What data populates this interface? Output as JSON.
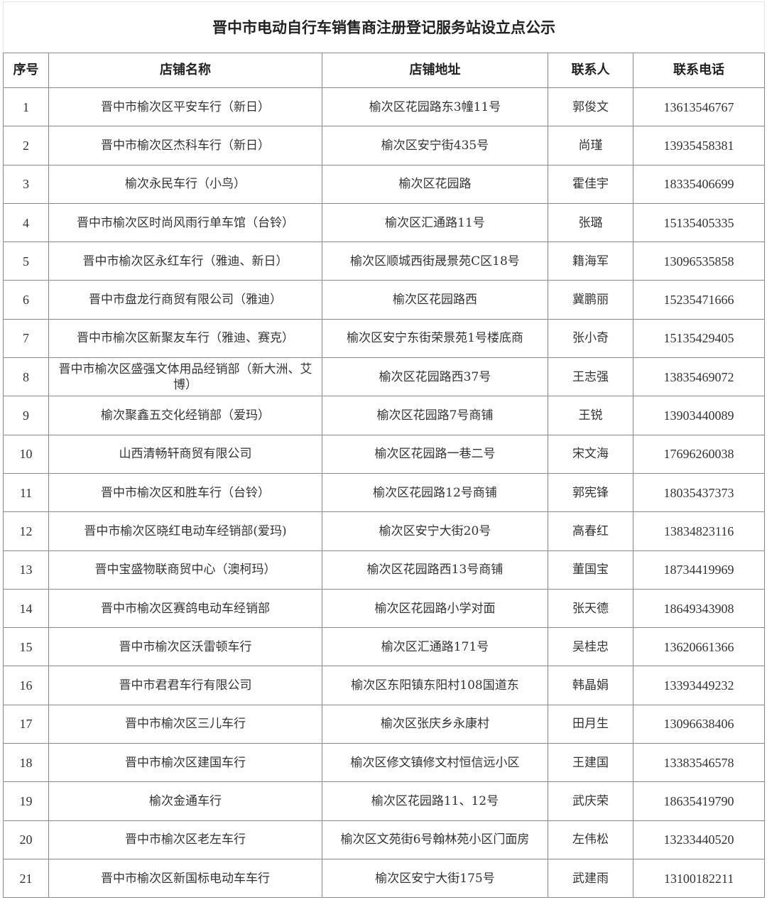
{
  "title": "晋中市电动自行车销售商注册登记服务站设立点公示",
  "headers": [
    "序号",
    "店铺名称",
    "店铺地址",
    "联系人",
    "联系电话"
  ],
  "rows": [
    {
      "no": "1",
      "name": "晋中市榆次区平安车行（新日）",
      "address": "榆次区花园路东3幢11号",
      "contact": "郭俊文",
      "phone": "13613546767"
    },
    {
      "no": "2",
      "name": "晋中市榆次区杰科车行（新日）",
      "address": "榆次区安宁街435号",
      "contact": "尚瑾",
      "phone": "13935458381"
    },
    {
      "no": "3",
      "name": "榆次永民车行（小鸟）",
      "address": "榆次区花园路",
      "contact": "霍佳宇",
      "phone": "18335406699"
    },
    {
      "no": "4",
      "name": "晋中市榆次区时尚风雨行单车馆（台铃）",
      "address": "榆次区汇通路11号",
      "contact": "张璐",
      "phone": "15135405335"
    },
    {
      "no": "5",
      "name": "晋中市榆次区永红车行（雅迪、新日）",
      "address": "榆次区顺城西街晟景苑C区18号",
      "contact": "籍海军",
      "phone": "13096535858"
    },
    {
      "no": "6",
      "name": "晋中市盘龙行商贸有限公司（雅迪）",
      "address": "榆次区花园路西",
      "contact": "冀鹏丽",
      "phone": "15235471666"
    },
    {
      "no": "7",
      "name": "晋中市榆次区新聚友车行（雅迪、赛克）",
      "address": "榆次区安宁东街荣景苑1号楼底商",
      "contact": "张小奇",
      "phone": "15135429405"
    },
    {
      "no": "8",
      "name": "晋中市榆次区盛强文体用品经销部（新大洲、艾博）",
      "address": "榆次区花园路西37号",
      "contact": "王志强",
      "phone": "13835469072"
    },
    {
      "no": "9",
      "name": "榆次聚鑫五交化经销部（爱玛）",
      "address": "榆次区花园路7号商铺",
      "contact": "王锐",
      "phone": "13903440089"
    },
    {
      "no": "10",
      "name": "山西清畅轩商贸有限公司",
      "address": "榆次区花园路一巷二号",
      "contact": "宋文海",
      "phone": "17696260038"
    },
    {
      "no": "11",
      "name": "晋中市榆次区和胜车行（台铃）",
      "address": "榆次区花园路12号商铺",
      "contact": "郭宪锋",
      "phone": "18035437373"
    },
    {
      "no": "12",
      "name": "晋中市榆次区晓红电动车经销部(爱玛)",
      "address": "榆次区安宁大街20号",
      "contact": "高春红",
      "phone": "13834823116"
    },
    {
      "no": "13",
      "name": "晋中宝盛物联商贸中心（澳柯玛）",
      "address": "榆次区花园路西13号商铺",
      "contact": "董国宝",
      "phone": "18734419969"
    },
    {
      "no": "14",
      "name": "晋中市榆次区赛鸽电动车经销部",
      "address": "榆次区花园路小学对面",
      "contact": "张天德",
      "phone": "18649343908"
    },
    {
      "no": "15",
      "name": "晋中市榆次区沃雷顿车行",
      "address": "榆次区汇通路171号",
      "contact": "吴桂忠",
      "phone": "13620661366"
    },
    {
      "no": "16",
      "name": "晋中市君君车行有限公司",
      "address": "榆次区东阳镇东阳村108国道东",
      "contact": "韩晶娟",
      "phone": "13393449232"
    },
    {
      "no": "17",
      "name": "晋中市榆次区三儿车行",
      "address": "榆次区张庆乡永康村",
      "contact": "田月生",
      "phone": "13096638406"
    },
    {
      "no": "18",
      "name": "晋中市榆次区建国车行",
      "address": "榆次区修文镇修文村恒信远小区",
      "contact": "王建国",
      "phone": "13383546578"
    },
    {
      "no": "19",
      "name": "榆次金通车行",
      "address": "榆次区花园路11、12号",
      "contact": "武庆荣",
      "phone": "18635419790"
    },
    {
      "no": "20",
      "name": "晋中市榆次区老左车行",
      "address": "榆次区文苑街6号翰林苑小区门面房",
      "contact": "左伟松",
      "phone": "13233440520"
    },
    {
      "no": "21",
      "name": "晋中市榆次区新国标电动车车行",
      "address": "榆次区安宁大街175号",
      "contact": "武建雨",
      "phone": "13100182211"
    }
  ]
}
